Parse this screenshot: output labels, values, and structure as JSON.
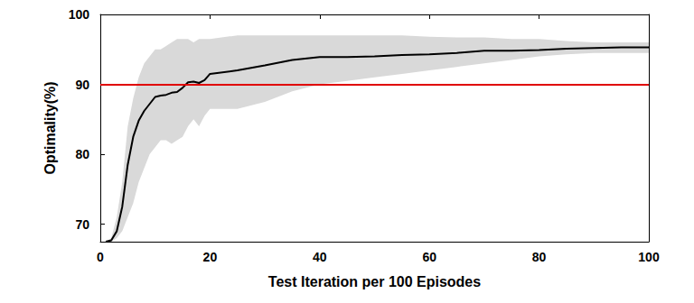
{
  "chart_data": {
    "type": "line",
    "x_label": "Test Iteration per 100 Episodes",
    "y_label": "Optimality(%)",
    "x": [
      1,
      2,
      3,
      4,
      5,
      6,
      7,
      8,
      9,
      10,
      11,
      12,
      13,
      14,
      15,
      16,
      17,
      18,
      19,
      20,
      25,
      30,
      35,
      40,
      45,
      50,
      55,
      60,
      65,
      70,
      75,
      80,
      85,
      90,
      95,
      100
    ],
    "series": [
      {
        "color": "#000000",
        "line_style": "solid",
        "values": [
          67.5,
          67.7,
          69,
          72.5,
          78.5,
          82.5,
          84.8,
          86.2,
          87.2,
          88.2,
          88.4,
          88.5,
          88.8,
          88.9,
          89.5,
          90.3,
          90.4,
          90.2,
          90.6,
          91.5,
          92,
          92.7,
          93.5,
          93.9,
          93.9,
          94,
          94.2,
          94.3,
          94.5,
          94.8,
          94.8,
          94.9,
          95.1,
          95.2,
          95.3,
          95.3
        ]
      }
    ],
    "band": {
      "color": "#d9d9d9",
      "lower": [
        67.5,
        67.5,
        68,
        69,
        71,
        73,
        76,
        78,
        80,
        81,
        82,
        82,
        81.5,
        82,
        82.5,
        84,
        85,
        84,
        85.5,
        86.5,
        86.5,
        87.5,
        89,
        90,
        90.5,
        91,
        91.5,
        92,
        92.5,
        93,
        93.5,
        94,
        94.3,
        94.5,
        94.5,
        94.5
      ],
      "upper": [
        67.5,
        68,
        71,
        76,
        84,
        88,
        91,
        93,
        94,
        95,
        95,
        95.5,
        96,
        96.5,
        96.5,
        96.5,
        96,
        96.5,
        96.5,
        96.5,
        97,
        97,
        97,
        97,
        97,
        97,
        97,
        96.8,
        96.7,
        96.7,
        96.5,
        96.5,
        96.2,
        96,
        96,
        96
      ]
    },
    "reference_line": {
      "value": 90,
      "color": "#e00000"
    },
    "xlim": [
      0,
      100
    ],
    "xticks": [
      0,
      20,
      40,
      60,
      80,
      100
    ],
    "ylim": [
      67.5,
      100
    ],
    "yticks": [
      70,
      80,
      90,
      100
    ],
    "grid": false
  }
}
